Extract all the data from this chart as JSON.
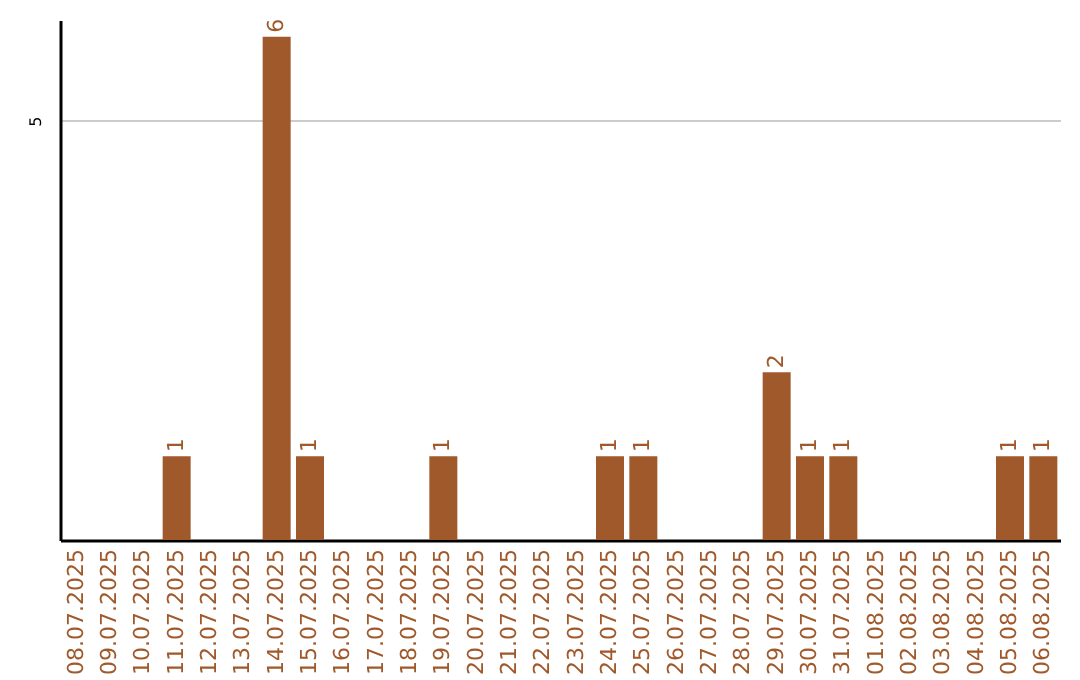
{
  "chart_data": {
    "type": "bar",
    "categories": [
      "08.07.2025",
      "09.07.2025",
      "10.07.2025",
      "11.07.2025",
      "12.07.2025",
      "13.07.2025",
      "14.07.2025",
      "15.07.2025",
      "16.07.2025",
      "17.07.2025",
      "18.07.2025",
      "19.07.2025",
      "20.07.2025",
      "21.07.2025",
      "22.07.2025",
      "23.07.2025",
      "24.07.2025",
      "25.07.2025",
      "26.07.2025",
      "27.07.2025",
      "28.07.2025",
      "29.07.2025",
      "30.07.2025",
      "31.07.2025",
      "01.08.2025",
      "02.08.2025",
      "03.08.2025",
      "04.08.2025",
      "05.08.2025",
      "06.08.2025"
    ],
    "values": [
      0,
      0,
      0,
      1,
      0,
      0,
      6,
      1,
      0,
      0,
      0,
      1,
      0,
      0,
      0,
      0,
      1,
      1,
      0,
      0,
      0,
      2,
      1,
      1,
      0,
      0,
      0,
      0,
      1,
      1
    ],
    "value_labels": [
      null,
      null,
      null,
      "1",
      null,
      null,
      "6",
      "1",
      null,
      null,
      null,
      "1",
      null,
      null,
      null,
      null,
      "1",
      "1",
      null,
      null,
      null,
      "2",
      "1",
      "1",
      null,
      null,
      null,
      null,
      "1",
      "1"
    ],
    "color": "#a0592b",
    "ylim": [
      0,
      6.2
    ],
    "yticks": [
      5
    ],
    "grid": "y"
  }
}
